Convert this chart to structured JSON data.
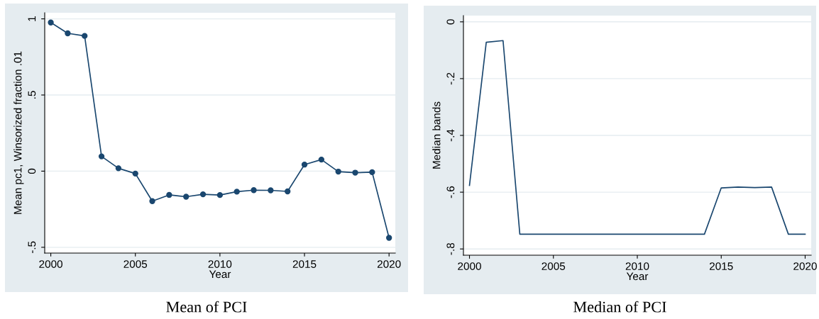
{
  "chart_data": [
    {
      "type": "line",
      "xlabel": "Year",
      "ylabel": "Mean pc1, Winsorized fraction .01",
      "annotations": [
        "Mean of PCI"
      ],
      "x": [
        2000,
        2001,
        2002,
        2003,
        2004,
        2005,
        2006,
        2007,
        2008,
        2009,
        2010,
        2011,
        2012,
        2013,
        2014,
        2015,
        2016,
        2017,
        2018,
        2019,
        2020
      ],
      "series": [
        {
          "color": "#1a476f",
          "values": [
            0.976,
            0.905,
            0.888,
            0.097,
            0.019,
            -0.016,
            -0.197,
            -0.156,
            -0.168,
            -0.152,
            -0.157,
            -0.135,
            -0.125,
            -0.126,
            -0.133,
            0.043,
            0.076,
            -0.003,
            -0.01,
            -0.007,
            -0.438
          ]
        }
      ],
      "xlim": [
        1999.64,
        2020.37
      ],
      "ylim": [
        -0.538,
        1.04
      ],
      "xticks": [
        2000,
        2005,
        2010,
        2015,
        2020
      ],
      "yticks": [
        {
          "value": -0.5,
          "label": "-.5"
        },
        {
          "value": 0,
          "label": "0"
        },
        {
          "value": 0.5,
          "label": ".5"
        },
        {
          "value": 1,
          "label": "1"
        }
      ],
      "grid": "y",
      "marker": "circle",
      "line_style": "solid"
    },
    {
      "type": "line",
      "xlabel": "Year",
      "ylabel": "Median bands",
      "annotations": [
        "Median of PCI"
      ],
      "x": [
        2000,
        2001,
        2002,
        2003,
        2004,
        2005,
        2006,
        2007,
        2008,
        2009,
        2010,
        2011,
        2012,
        2013,
        2014,
        2015,
        2016,
        2017,
        2018,
        2019,
        2020
      ],
      "series": [
        {
          "color": "#1a476f",
          "values": [
            -0.576,
            -0.072,
            -0.066,
            -0.748,
            -0.748,
            -0.748,
            -0.748,
            -0.748,
            -0.748,
            -0.748,
            -0.748,
            -0.748,
            -0.748,
            -0.748,
            -0.748,
            -0.585,
            -0.582,
            -0.584,
            -0.582,
            -0.748,
            -0.748
          ]
        }
      ],
      "xlim": [
        1999.64,
        2020.36
      ],
      "ylim": [
        -0.822,
        0.022
      ],
      "xticks": [
        2000,
        2005,
        2010,
        2015,
        2020
      ],
      "yticks": [
        {
          "value": -0.8,
          "label": "-.8"
        },
        {
          "value": -0.6,
          "label": "-.6"
        },
        {
          "value": -0.4,
          "label": "-.4"
        },
        {
          "value": -0.2,
          "label": "-.2"
        },
        {
          "value": 0,
          "label": "0"
        }
      ],
      "grid": "y",
      "line_style": "solid"
    }
  ]
}
